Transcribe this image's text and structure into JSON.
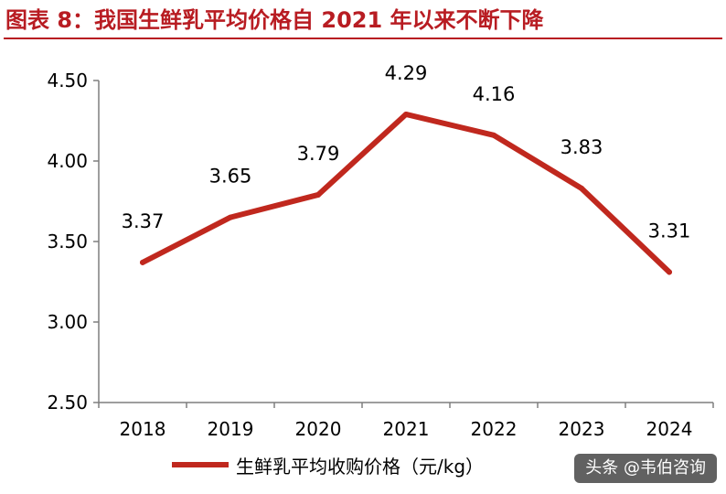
{
  "header": {
    "title": "图表 8：我国生鲜乳平均价格自 2021 年以来不断下降"
  },
  "chart_data": {
    "type": "line",
    "x": [
      "2018",
      "2019",
      "2020",
      "2021",
      "2022",
      "2023",
      "2024"
    ],
    "series": [
      {
        "name": "生鲜乳平均收购价格（元/kg）",
        "values": [
          3.37,
          3.65,
          3.79,
          4.29,
          4.16,
          3.83,
          3.31
        ]
      }
    ],
    "yticks": [
      "2.50",
      "3.00",
      "3.50",
      "4.00",
      "4.50"
    ],
    "ylim": [
      2.5,
      4.5
    ],
    "grid": false,
    "legend": "bottom",
    "line_color": "#c0281e"
  },
  "watermark": {
    "text": "头条 @韦伯咨询"
  }
}
